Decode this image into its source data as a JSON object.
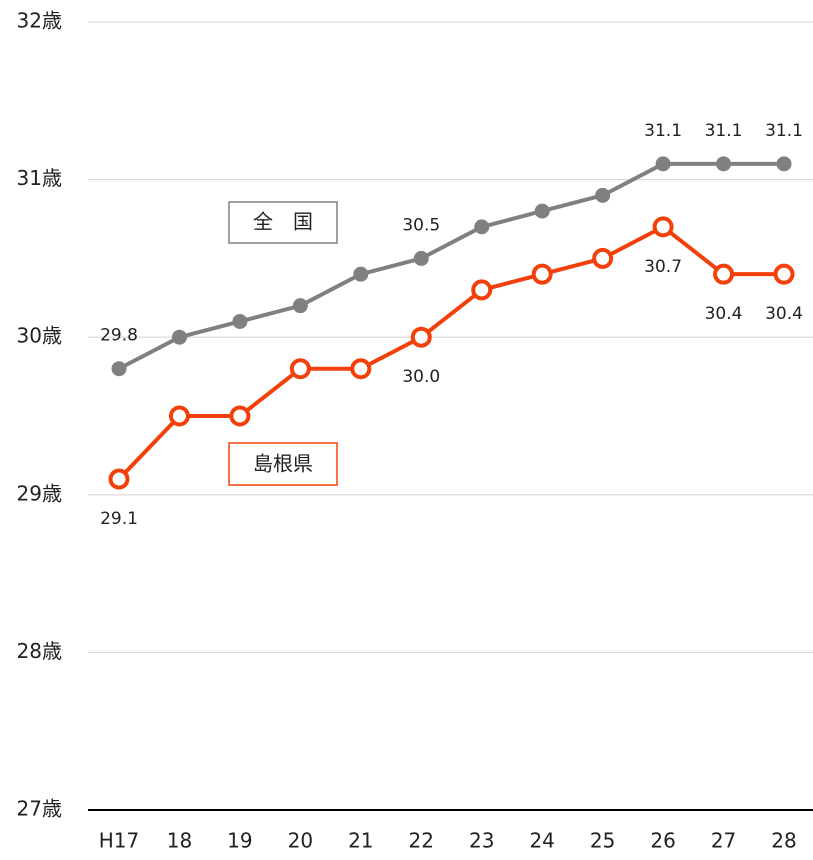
{
  "chart_data": {
    "type": "line",
    "categories": [
      "H17",
      "18",
      "19",
      "20",
      "21",
      "22",
      "23",
      "24",
      "25",
      "26",
      "27",
      "28"
    ],
    "series": [
      {
        "name": "全　国",
        "color": "#808080",
        "values": [
          29.8,
          30.0,
          30.1,
          30.2,
          30.4,
          30.5,
          30.7,
          30.8,
          30.9,
          31.1,
          31.1,
          31.1
        ],
        "value_labels": [
          "29.8",
          null,
          null,
          null,
          null,
          "30.5",
          null,
          null,
          null,
          "31.1",
          "31.1",
          "31.1"
        ]
      },
      {
        "name": "島根県",
        "color": "#f2400a",
        "values": [
          29.1,
          29.5,
          29.5,
          29.8,
          29.8,
          30.0,
          30.3,
          30.4,
          30.5,
          30.7,
          30.4,
          30.4
        ],
        "value_labels": [
          "29.1",
          null,
          null,
          null,
          null,
          "30.0",
          null,
          null,
          null,
          "30.7",
          "30.4",
          "30.4"
        ]
      }
    ],
    "ylim": [
      27,
      32
    ],
    "yticks": [
      {
        "value": 27,
        "label": "27歳"
      },
      {
        "value": 28,
        "label": "28歳"
      },
      {
        "value": 29,
        "label": "29歳"
      },
      {
        "value": 30,
        "label": "30歳"
      },
      {
        "value": 31,
        "label": "31歳"
      },
      {
        "value": 32,
        "label": "32歳"
      }
    ],
    "grid": true
  }
}
